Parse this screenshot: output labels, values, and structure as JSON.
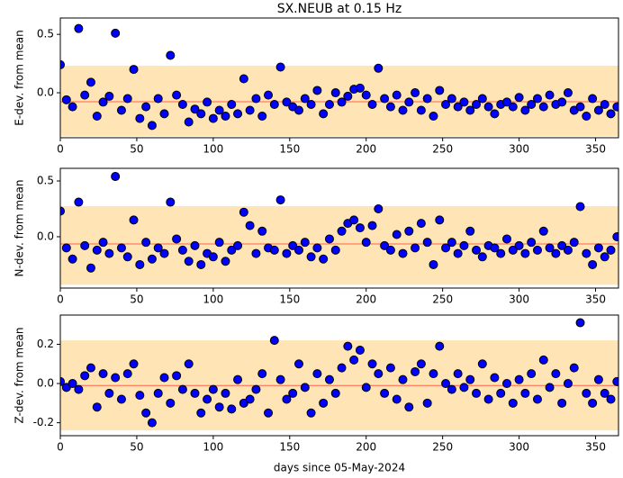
{
  "chart_data": [
    {
      "type": "scatter",
      "title": "SX.NEUB at 0.15 Hz",
      "ylabel": "E-dev. from mean",
      "color": "#0000ff",
      "band": [
        -0.37,
        0.231
      ],
      "band_color": "#ffe4b5",
      "hline": -0.077,
      "hline_color": "#ff6347",
      "xlim": [
        0,
        365
      ],
      "xticks": [
        0,
        50,
        100,
        150,
        200,
        250,
        300,
        350
      ],
      "ylim": [
        -0.385,
        0.64
      ],
      "yticks": [
        {
          "value": 0,
          "label": "0.0"
        },
        0.5
      ],
      "x": [
        0,
        4,
        8,
        12,
        16,
        20,
        24,
        28,
        32,
        36,
        40,
        44,
        48,
        52,
        56,
        60,
        64,
        68,
        72,
        76,
        80,
        84,
        88,
        92,
        96,
        100,
        104,
        108,
        112,
        116,
        120,
        124,
        128,
        132,
        136,
        140,
        144,
        148,
        152,
        156,
        160,
        164,
        168,
        172,
        176,
        180,
        184,
        188,
        192,
        196,
        200,
        204,
        208,
        212,
        216,
        220,
        224,
        228,
        232,
        236,
        240,
        244,
        248,
        252,
        256,
        260,
        264,
        268,
        272,
        276,
        280,
        284,
        288,
        292,
        296,
        300,
        304,
        308,
        312,
        316,
        320,
        324,
        328,
        332,
        336,
        340,
        344,
        348,
        352,
        356,
        360,
        364
      ],
      "values": [
        0.24,
        -0.06,
        -0.12,
        0.55,
        -0.02,
        0.09,
        -0.2,
        -0.08,
        -0.03,
        0.51,
        -0.15,
        -0.05,
        0.2,
        -0.22,
        -0.12,
        -0.28,
        -0.05,
        -0.18,
        0.32,
        -0.02,
        -0.1,
        -0.25,
        -0.14,
        -0.18,
        -0.08,
        -0.22,
        -0.15,
        -0.2,
        -0.1,
        -0.18,
        0.12,
        -0.15,
        -0.05,
        -0.2,
        -0.02,
        -0.1,
        0.22,
        -0.08,
        -0.12,
        -0.15,
        -0.05,
        -0.1,
        0.02,
        -0.18,
        -0.1,
        0.0,
        -0.08,
        -0.03,
        0.03,
        0.04,
        -0.02,
        -0.1,
        0.21,
        -0.05,
        -0.12,
        -0.02,
        -0.15,
        -0.08,
        0.0,
        -0.15,
        -0.05,
        -0.2,
        0.02,
        -0.1,
        -0.05,
        -0.12,
        -0.08,
        -0.15,
        -0.1,
        -0.05,
        -0.12,
        -0.18,
        -0.1,
        -0.08,
        -0.12,
        -0.04,
        -0.15,
        -0.1,
        -0.05,
        -0.12,
        -0.02,
        -0.1,
        -0.08,
        0.0,
        -0.15,
        -0.12,
        -0.2,
        -0.05,
        -0.15,
        -0.1,
        -0.18,
        -0.12
      ]
    },
    {
      "type": "scatter",
      "ylabel": "N-dev. from mean",
      "color": "#0000ff",
      "band": [
        -0.43,
        0.274
      ],
      "band_color": "#ffe4b5",
      "hline": -0.065,
      "hline_color": "#ff6347",
      "xlim": [
        0,
        365
      ],
      "xticks": [
        0,
        50,
        100,
        150,
        200,
        250,
        300,
        350
      ],
      "ylim": [
        -0.46,
        0.613
      ],
      "yticks": [
        {
          "value": 0,
          "label": "0.0"
        },
        0.5
      ],
      "x": [
        0,
        4,
        8,
        12,
        16,
        20,
        24,
        28,
        32,
        36,
        40,
        44,
        48,
        52,
        56,
        60,
        64,
        68,
        72,
        76,
        80,
        84,
        88,
        92,
        96,
        100,
        104,
        108,
        112,
        116,
        120,
        124,
        128,
        132,
        136,
        140,
        144,
        148,
        152,
        156,
        160,
        164,
        168,
        172,
        176,
        180,
        184,
        188,
        192,
        196,
        200,
        204,
        208,
        212,
        216,
        220,
        224,
        228,
        232,
        236,
        240,
        244,
        248,
        252,
        256,
        260,
        264,
        268,
        272,
        276,
        280,
        284,
        288,
        292,
        296,
        300,
        304,
        308,
        312,
        316,
        320,
        324,
        328,
        332,
        336,
        340,
        344,
        348,
        352,
        356,
        360,
        364
      ],
      "values": [
        0.23,
        -0.1,
        -0.2,
        0.31,
        -0.08,
        -0.28,
        -0.12,
        -0.05,
        -0.15,
        0.54,
        -0.1,
        -0.18,
        0.15,
        -0.25,
        -0.05,
        -0.2,
        -0.1,
        -0.15,
        0.31,
        -0.02,
        -0.12,
        -0.22,
        -0.08,
        -0.25,
        -0.15,
        -0.18,
        -0.05,
        -0.22,
        -0.12,
        -0.08,
        0.22,
        0.1,
        -0.15,
        0.05,
        -0.1,
        -0.12,
        0.33,
        -0.15,
        -0.08,
        -0.12,
        -0.05,
        -0.18,
        -0.1,
        -0.2,
        -0.02,
        -0.12,
        0.05,
        0.12,
        0.15,
        0.08,
        -0.05,
        0.1,
        0.25,
        -0.08,
        -0.12,
        0.02,
        -0.15,
        0.05,
        -0.1,
        0.12,
        -0.05,
        -0.25,
        0.15,
        -0.1,
        -0.05,
        -0.15,
        -0.08,
        0.05,
        -0.12,
        -0.18,
        -0.08,
        -0.1,
        -0.15,
        -0.02,
        -0.12,
        -0.08,
        -0.15,
        -0.05,
        -0.12,
        0.05,
        -0.1,
        -0.15,
        -0.08,
        -0.12,
        -0.05,
        0.27,
        -0.15,
        -0.25,
        -0.1,
        -0.18,
        -0.12,
        0.0
      ]
    },
    {
      "type": "scatter",
      "ylabel": "Z-dev. from mean",
      "xlabel": "days since 05-May-2024",
      "color": "#0000ff",
      "band": [
        -0.239,
        0.22
      ],
      "band_color": "#ffe4b5",
      "hline": -0.01,
      "hline_color": "#ff6347",
      "xlim": [
        0,
        365
      ],
      "xticks": [
        0,
        50,
        100,
        150,
        200,
        250,
        300,
        350
      ],
      "ylim": [
        -0.266,
        0.349
      ],
      "yticks": [
        -0.2,
        {
          "value": 0,
          "label": "0.0"
        },
        0.2
      ],
      "x": [
        0,
        4,
        8,
        12,
        16,
        20,
        24,
        28,
        32,
        36,
        40,
        44,
        48,
        52,
        56,
        60,
        64,
        68,
        72,
        76,
        80,
        84,
        88,
        92,
        96,
        100,
        104,
        108,
        112,
        116,
        120,
        124,
        128,
        132,
        136,
        140,
        144,
        148,
        152,
        156,
        160,
        164,
        168,
        172,
        176,
        180,
        184,
        188,
        192,
        196,
        200,
        204,
        208,
        212,
        216,
        220,
        224,
        228,
        232,
        236,
        240,
        244,
        248,
        252,
        256,
        260,
        264,
        268,
        272,
        276,
        280,
        284,
        288,
        292,
        296,
        300,
        304,
        308,
        312,
        316,
        320,
        324,
        328,
        332,
        336,
        340,
        344,
        348,
        352,
        356,
        360,
        364
      ],
      "values": [
        0.01,
        -0.02,
        0.0,
        -0.03,
        0.04,
        0.08,
        -0.12,
        0.05,
        -0.05,
        0.03,
        -0.08,
        0.05,
        0.1,
        -0.06,
        -0.15,
        -0.2,
        -0.05,
        0.03,
        -0.1,
        0.04,
        -0.03,
        0.1,
        -0.05,
        -0.15,
        -0.08,
        -0.03,
        -0.12,
        -0.05,
        -0.13,
        0.02,
        -0.1,
        -0.08,
        -0.03,
        0.05,
        -0.15,
        0.22,
        0.02,
        -0.08,
        -0.05,
        0.1,
        -0.02,
        -0.15,
        0.05,
        -0.1,
        0.02,
        -0.05,
        0.08,
        0.19,
        0.12,
        0.17,
        -0.02,
        0.1,
        0.05,
        -0.05,
        0.08,
        -0.08,
        0.02,
        -0.12,
        0.06,
        0.1,
        -0.1,
        0.05,
        0.19,
        0.0,
        -0.03,
        0.05,
        -0.02,
        0.02,
        -0.05,
        0.1,
        -0.08,
        0.03,
        -0.05,
        0.0,
        -0.1,
        0.02,
        -0.05,
        0.05,
        -0.08,
        0.12,
        -0.02,
        0.05,
        -0.1,
        0.0,
        0.08,
        0.31,
        -0.05,
        -0.1,
        0.02,
        -0.05,
        -0.08,
        0.01
      ]
    }
  ]
}
